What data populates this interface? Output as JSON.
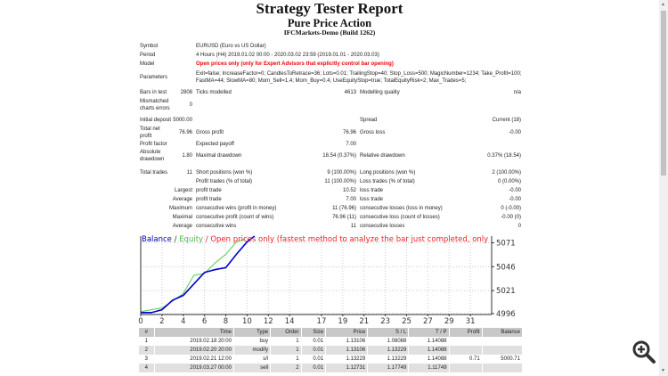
{
  "header": {
    "title": "Strategy Tester Report",
    "expert": "Pure Price Action",
    "server": "IFCMarkets-Demo (Build 1262)"
  },
  "info": {
    "symbol_label": "Symbol",
    "symbol": "EURUSD (Euro vs US Dollar)",
    "period_label": "Period",
    "period": "4 Hours (H4) 2019.01.02 00:00 - 2020.03.02 23:59 (2019.01.01 - 2020.03.03)",
    "model_label": "Model",
    "model": "Open prices only (only for Expert Advisors that explicitly control bar opening)",
    "params_label": "Parameters",
    "params_1": "Exit=false; IncreaseFactor=0; CandlesToRetrace=36; Lots=0.01; TrailingStop=40; Stop_Loss=500; MagicNumber=1234; Take_Profit=100;",
    "params_2": "FastMA=44; SlowMA=80; Mom_Sell=1.4; Mom_Buy=0.4; UseEquityStop=true; TotalEquityRisk=2; Max_Trades=5;",
    "bars_label": "Bars in test",
    "bars": "2808",
    "ticks_label": "Ticks modelled",
    "ticks": "4613",
    "quality_label": "Modelling quality",
    "quality": "n/a",
    "mismatch_label_1": "Mismatched",
    "mismatch_label_2": "charts errors",
    "mismatch": "0"
  },
  "stats": {
    "deposit_label": "Initial deposit",
    "deposit": "5000.00",
    "spread_label": "Spread",
    "spread": "Current (18)",
    "net_label_1": "Total net",
    "net_label_2": "profit",
    "net": "76.96",
    "gross_profit_label": "Gross profit",
    "gross_profit": "76.96",
    "gross_loss_label": "Gross loss",
    "gross_loss": "-0.00",
    "pf_label": "Profit factor",
    "ep_label": "Expected payoff",
    "ep": "7.00",
    "abs_dd_label_1": "Absolute",
    "abs_dd_label_2": "drawdown",
    "abs_dd": "1.80",
    "max_dd_label": "Maximal drawdown",
    "max_dd": "18.54 (0.37%)",
    "rel_dd_label": "Relative drawdown",
    "rel_dd": "0.37% (18.54)",
    "total_trades_label": "Total trades",
    "total_trades": "11",
    "short_label": "Short positions (won %)",
    "short": "9 (100.00%)",
    "long_label": "Long positions (won %)",
    "long": "2 (100.00%)",
    "pt_label": "Profit trades (% of total)",
    "pt": "11 (100.00%)",
    "lt_label": "Loss trades (% of total)",
    "lt": "0 (0.00%)",
    "largest": "Largest",
    "lp_label": "profit trade",
    "lp": "10.52",
    "ll_label": "loss trade",
    "ll": "-0.00",
    "average": "Average",
    "ap_label": "profit trade",
    "ap": "7.00",
    "al_label": "loss trade",
    "al": "-0.00",
    "maximum": "Maximum",
    "mcw_label": "consecutive wins (profit in money)",
    "mcw": "11 (76.96)",
    "mcl_label": "consecutive losses (loss in money)",
    "mcl": "0 (-0.00)",
    "maximal": "Maximal",
    "mcp_label": "consecutive profit (count of wins)",
    "mcp": "76.96 (11)",
    "mclo_label": "consecutive loss (count of losses)",
    "mclo": "-0.00 (0)",
    "average2": "Average",
    "acw_label": "consecutive wins",
    "acw": "11",
    "acl_label": "consecutive losses",
    "acl": "0"
  },
  "chart_data": {
    "type": "line",
    "legend": {
      "balance": "Balance",
      "sep": " / ",
      "equity": "Equity",
      "note": " / Open prices only (fastest method to analyze the bar just completed, only for EAs that explicitly control bar opening)"
    },
    "x_ticks": [
      0,
      2,
      4,
      6,
      8,
      10,
      12,
      14,
      17,
      19,
      21,
      23,
      25,
      27,
      29,
      31
    ],
    "y_ticks": [
      4996,
      5021,
      5046,
      5071
    ],
    "xlim": [
      0,
      33
    ],
    "ylim": [
      4996,
      5078
    ],
    "grid": true,
    "series": [
      {
        "name": "Balance",
        "color": "#0000cc",
        "x": [
          0,
          1,
          2,
          3,
          4,
          5,
          6,
          7,
          8,
          9,
          10,
          10.7
        ],
        "y": [
          4998,
          4998,
          5001,
          5011,
          5016,
          5028,
          5040,
          5043,
          5045,
          5059,
          5072,
          5078
        ]
      },
      {
        "name": "Equity",
        "color": "#55cc55",
        "x": [
          0,
          2,
          3,
          4,
          5,
          6,
          7,
          8,
          9,
          9.8
        ],
        "y": [
          4999,
          5003,
          5010,
          5018,
          5037,
          5039,
          5050,
          5059,
          5072,
          5075
        ]
      }
    ]
  },
  "trades": {
    "headers": [
      "#",
      "Time",
      "Type",
      "Order",
      "Size",
      "Price",
      "S / L",
      "T / P",
      "Profit",
      "Balance"
    ],
    "rows": [
      [
        "1",
        "2019.02.18 20:00",
        "buy",
        "1",
        "0.01",
        "1.13106",
        "1.08088",
        "1.14088",
        "",
        ""
      ],
      [
        "2",
        "2019.02.20 20:00",
        "modify",
        "1",
        "0.01",
        "1.13106",
        "1.13229",
        "1.14088",
        "",
        ""
      ],
      [
        "3",
        "2019.02.21 12:00",
        "s/l",
        "1",
        "0.01",
        "1.13229",
        "1.13229",
        "1.14088",
        "0.71",
        "5000.71"
      ],
      [
        "4",
        "2019.03.27 00:00",
        "sell",
        "2",
        "0.01",
        "1.12731",
        "1.17749",
        "1.11749",
        "",
        ""
      ]
    ]
  }
}
